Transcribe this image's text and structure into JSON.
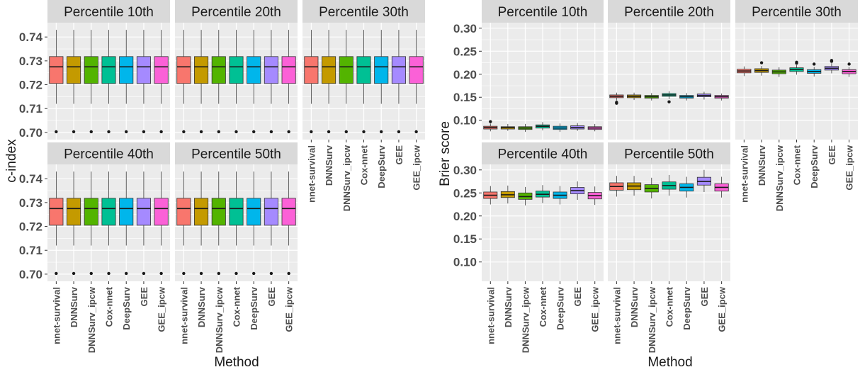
{
  "colors": {
    "nnet-survival": "#F8766D",
    "DNNSurv": "#C49A00",
    "DNNSurv_ipcw": "#53B400",
    "Cox-nnet": "#00C094",
    "DeepSurv": "#00B6EB",
    "GEE": "#A58AFF",
    "GEE_ipcw": "#FB61D7",
    "panel_bg": "#EBEBEB",
    "strip_bg": "#D9D9D9",
    "grid": "#FFFFFF"
  },
  "chart_data": [
    {
      "type": "box",
      "facet_layout": "3 columns, 2 rows",
      "ylabel": "c-index",
      "xlabel": "Method",
      "ylim": [
        0.697,
        0.746
      ],
      "yticks": [
        "0.70",
        "0.71",
        "0.72",
        "0.73",
        "0.74"
      ],
      "yticks_values": [
        0.7,
        0.71,
        0.72,
        0.73,
        0.74
      ],
      "categories": [
        "nnet-survival",
        "DNNSurv",
        "DNNSurv_ipcw",
        "Cox-nnet",
        "DeepSurv",
        "GEE",
        "GEE_ipcw"
      ],
      "panels": [
        {
          "title": "Percentile 10th",
          "boxes": [
            {
              "q1": 0.7205,
              "median": 0.7275,
              "q3": 0.7318,
              "whislo": 0.712,
              "whishi": 0.743,
              "outliers": [
                0.7003
              ]
            },
            {
              "q1": 0.7205,
              "median": 0.7275,
              "q3": 0.7318,
              "whislo": 0.712,
              "whishi": 0.743,
              "outliers": [
                0.7003
              ]
            },
            {
              "q1": 0.7205,
              "median": 0.7275,
              "q3": 0.7318,
              "whislo": 0.712,
              "whishi": 0.743,
              "outliers": [
                0.7003
              ]
            },
            {
              "q1": 0.7205,
              "median": 0.7275,
              "q3": 0.7318,
              "whislo": 0.712,
              "whishi": 0.743,
              "outliers": [
                0.7003
              ]
            },
            {
              "q1": 0.7205,
              "median": 0.7275,
              "q3": 0.7318,
              "whislo": 0.712,
              "whishi": 0.743,
              "outliers": [
                0.7003
              ]
            },
            {
              "q1": 0.7205,
              "median": 0.7275,
              "q3": 0.7318,
              "whislo": 0.712,
              "whishi": 0.743,
              "outliers": [
                0.7003
              ]
            },
            {
              "q1": 0.7205,
              "median": 0.7275,
              "q3": 0.7318,
              "whislo": 0.712,
              "whishi": 0.743,
              "outliers": [
                0.7003
              ]
            }
          ]
        },
        {
          "title": "Percentile 20th",
          "boxes": [
            {
              "q1": 0.7205,
              "median": 0.7275,
              "q3": 0.7318,
              "whislo": 0.712,
              "whishi": 0.743,
              "outliers": [
                0.7003
              ]
            },
            {
              "q1": 0.7205,
              "median": 0.7275,
              "q3": 0.7318,
              "whislo": 0.712,
              "whishi": 0.743,
              "outliers": [
                0.7003
              ]
            },
            {
              "q1": 0.7205,
              "median": 0.7275,
              "q3": 0.7318,
              "whislo": 0.712,
              "whishi": 0.743,
              "outliers": [
                0.7003
              ]
            },
            {
              "q1": 0.7205,
              "median": 0.7275,
              "q3": 0.7318,
              "whislo": 0.712,
              "whishi": 0.743,
              "outliers": [
                0.7003
              ]
            },
            {
              "q1": 0.7205,
              "median": 0.7275,
              "q3": 0.7318,
              "whislo": 0.712,
              "whishi": 0.743,
              "outliers": [
                0.7003
              ]
            },
            {
              "q1": 0.7205,
              "median": 0.7275,
              "q3": 0.7318,
              "whislo": 0.712,
              "whishi": 0.743,
              "outliers": [
                0.7003
              ]
            },
            {
              "q1": 0.7205,
              "median": 0.7275,
              "q3": 0.7318,
              "whislo": 0.712,
              "whishi": 0.743,
              "outliers": [
                0.7003
              ]
            }
          ]
        },
        {
          "title": "Percentile 30th",
          "boxes": [
            {
              "q1": 0.7205,
              "median": 0.7275,
              "q3": 0.7318,
              "whislo": 0.712,
              "whishi": 0.743,
              "outliers": [
                0.7003
              ]
            },
            {
              "q1": 0.7205,
              "median": 0.7275,
              "q3": 0.7318,
              "whislo": 0.712,
              "whishi": 0.743,
              "outliers": [
                0.7003
              ]
            },
            {
              "q1": 0.7205,
              "median": 0.7275,
              "q3": 0.7318,
              "whislo": 0.712,
              "whishi": 0.743,
              "outliers": [
                0.7003
              ]
            },
            {
              "q1": 0.7205,
              "median": 0.7275,
              "q3": 0.7318,
              "whislo": 0.712,
              "whishi": 0.743,
              "outliers": [
                0.7003
              ]
            },
            {
              "q1": 0.7205,
              "median": 0.7275,
              "q3": 0.7318,
              "whislo": 0.712,
              "whishi": 0.743,
              "outliers": [
                0.7003
              ]
            },
            {
              "q1": 0.7205,
              "median": 0.7275,
              "q3": 0.7318,
              "whislo": 0.712,
              "whishi": 0.743,
              "outliers": [
                0.7003
              ]
            },
            {
              "q1": 0.7205,
              "median": 0.7275,
              "q3": 0.7318,
              "whislo": 0.712,
              "whishi": 0.743,
              "outliers": [
                0.7003
              ]
            }
          ]
        },
        {
          "title": "Percentile 40th",
          "boxes": [
            {
              "q1": 0.7205,
              "median": 0.7275,
              "q3": 0.7318,
              "whislo": 0.712,
              "whishi": 0.743,
              "outliers": [
                0.7003
              ]
            },
            {
              "q1": 0.7205,
              "median": 0.7275,
              "q3": 0.7318,
              "whislo": 0.712,
              "whishi": 0.743,
              "outliers": [
                0.7003
              ]
            },
            {
              "q1": 0.7205,
              "median": 0.7275,
              "q3": 0.7318,
              "whislo": 0.712,
              "whishi": 0.743,
              "outliers": [
                0.7003
              ]
            },
            {
              "q1": 0.7205,
              "median": 0.7275,
              "q3": 0.7318,
              "whislo": 0.712,
              "whishi": 0.743,
              "outliers": [
                0.7003
              ]
            },
            {
              "q1": 0.7205,
              "median": 0.7275,
              "q3": 0.7318,
              "whislo": 0.712,
              "whishi": 0.743,
              "outliers": [
                0.7003
              ]
            },
            {
              "q1": 0.7205,
              "median": 0.7275,
              "q3": 0.7318,
              "whislo": 0.712,
              "whishi": 0.743,
              "outliers": [
                0.7003
              ]
            },
            {
              "q1": 0.7205,
              "median": 0.7275,
              "q3": 0.7318,
              "whislo": 0.712,
              "whishi": 0.743,
              "outliers": [
                0.7003
              ]
            }
          ]
        },
        {
          "title": "Percentile 50th",
          "boxes": [
            {
              "q1": 0.7205,
              "median": 0.7275,
              "q3": 0.7318,
              "whislo": 0.712,
              "whishi": 0.743,
              "outliers": [
                0.7003
              ]
            },
            {
              "q1": 0.7205,
              "median": 0.7275,
              "q3": 0.7318,
              "whislo": 0.712,
              "whishi": 0.743,
              "outliers": [
                0.7003
              ]
            },
            {
              "q1": 0.7205,
              "median": 0.7275,
              "q3": 0.7318,
              "whislo": 0.712,
              "whishi": 0.743,
              "outliers": [
                0.7003
              ]
            },
            {
              "q1": 0.7205,
              "median": 0.7275,
              "q3": 0.7318,
              "whislo": 0.712,
              "whishi": 0.743,
              "outliers": [
                0.7003
              ]
            },
            {
              "q1": 0.7205,
              "median": 0.7275,
              "q3": 0.7318,
              "whislo": 0.712,
              "whishi": 0.743,
              "outliers": [
                0.7003
              ]
            },
            {
              "q1": 0.7205,
              "median": 0.7275,
              "q3": 0.7318,
              "whislo": 0.712,
              "whishi": 0.743,
              "outliers": [
                0.7003
              ]
            },
            {
              "q1": 0.7205,
              "median": 0.7275,
              "q3": 0.7318,
              "whislo": 0.712,
              "whishi": 0.743,
              "outliers": [
                0.7003
              ]
            }
          ]
        }
      ]
    },
    {
      "type": "box",
      "facet_layout": "3 columns, 2 rows",
      "ylabel": "Brier score",
      "xlabel": "Method",
      "ylim": [
        0.058,
        0.312
      ],
      "yticks": [
        "0.10",
        "0.15",
        "0.20",
        "0.25",
        "0.30"
      ],
      "yticks_values": [
        0.1,
        0.15,
        0.2,
        0.25,
        0.3
      ],
      "categories": [
        "nnet-survival",
        "DNNSurv",
        "DNNSurv_ipcw",
        "Cox-nnet",
        "DeepSurv",
        "GEE",
        "GEE_ipcw"
      ],
      "panels": [
        {
          "title": "Percentile 10th",
          "boxes": [
            {
              "q1": 0.081,
              "median": 0.084,
              "q3": 0.087,
              "whislo": 0.076,
              "whishi": 0.093,
              "outliers": [
                0.097
              ]
            },
            {
              "q1": 0.081,
              "median": 0.084,
              "q3": 0.086,
              "whislo": 0.077,
              "whishi": 0.092,
              "outliers": []
            },
            {
              "q1": 0.08,
              "median": 0.083,
              "q3": 0.086,
              "whislo": 0.075,
              "whishi": 0.092,
              "outliers": []
            },
            {
              "q1": 0.083,
              "median": 0.087,
              "q3": 0.09,
              "whislo": 0.078,
              "whishi": 0.096,
              "outliers": []
            },
            {
              "q1": 0.08,
              "median": 0.083,
              "q3": 0.087,
              "whislo": 0.075,
              "whishi": 0.093,
              "outliers": []
            },
            {
              "q1": 0.081,
              "median": 0.084,
              "q3": 0.088,
              "whislo": 0.077,
              "whishi": 0.094,
              "outliers": []
            },
            {
              "q1": 0.08,
              "median": 0.083,
              "q3": 0.086,
              "whislo": 0.076,
              "whishi": 0.092,
              "outliers": []
            }
          ]
        },
        {
          "title": "Percentile 20th",
          "boxes": [
            {
              "q1": 0.149,
              "median": 0.152,
              "q3": 0.155,
              "whislo": 0.143,
              "whishi": 0.16,
              "outliers": [
                0.139,
                0.137
              ]
            },
            {
              "q1": 0.149,
              "median": 0.152,
              "q3": 0.155,
              "whislo": 0.144,
              "whishi": 0.16,
              "outliers": []
            },
            {
              "q1": 0.148,
              "median": 0.151,
              "q3": 0.154,
              "whislo": 0.143,
              "whishi": 0.159,
              "outliers": []
            },
            {
              "q1": 0.152,
              "median": 0.155,
              "q3": 0.158,
              "whislo": 0.146,
              "whishi": 0.163,
              "outliers": [
                0.14
              ]
            },
            {
              "q1": 0.148,
              "median": 0.151,
              "q3": 0.154,
              "whislo": 0.143,
              "whishi": 0.159,
              "outliers": []
            },
            {
              "q1": 0.151,
              "median": 0.154,
              "q3": 0.157,
              "whislo": 0.145,
              "whishi": 0.162,
              "outliers": []
            },
            {
              "q1": 0.148,
              "median": 0.151,
              "q3": 0.154,
              "whislo": 0.143,
              "whishi": 0.158,
              "outliers": []
            }
          ]
        },
        {
          "title": "Percentile 30th",
          "boxes": [
            {
              "q1": 0.203,
              "median": 0.207,
              "q3": 0.211,
              "whislo": 0.196,
              "whishi": 0.217,
              "outliers": []
            },
            {
              "q1": 0.204,
              "median": 0.208,
              "q3": 0.212,
              "whislo": 0.197,
              "whishi": 0.218,
              "outliers": [
                0.225
              ]
            },
            {
              "q1": 0.201,
              "median": 0.205,
              "q3": 0.209,
              "whislo": 0.194,
              "whishi": 0.215,
              "outliers": []
            },
            {
              "q1": 0.206,
              "median": 0.21,
              "q3": 0.214,
              "whislo": 0.199,
              "whishi": 0.22,
              "outliers": [
                0.226,
                0.224
              ]
            },
            {
              "q1": 0.202,
              "median": 0.206,
              "q3": 0.21,
              "whislo": 0.195,
              "whishi": 0.216,
              "outliers": [
                0.222
              ]
            },
            {
              "q1": 0.209,
              "median": 0.213,
              "q3": 0.217,
              "whislo": 0.202,
              "whishi": 0.224,
              "outliers": [
                0.23,
                0.228
              ]
            },
            {
              "q1": 0.201,
              "median": 0.206,
              "q3": 0.21,
              "whislo": 0.194,
              "whishi": 0.216,
              "outliers": [
                0.222
              ]
            }
          ]
        },
        {
          "title": "Percentile 40th",
          "boxes": [
            {
              "q1": 0.238,
              "median": 0.245,
              "q3": 0.252,
              "whislo": 0.225,
              "whishi": 0.265,
              "outliers": []
            },
            {
              "q1": 0.24,
              "median": 0.246,
              "q3": 0.253,
              "whislo": 0.227,
              "whishi": 0.266,
              "outliers": []
            },
            {
              "q1": 0.236,
              "median": 0.242,
              "q3": 0.25,
              "whislo": 0.223,
              "whishi": 0.263,
              "outliers": []
            },
            {
              "q1": 0.241,
              "median": 0.247,
              "q3": 0.254,
              "whislo": 0.228,
              "whishi": 0.267,
              "outliers": []
            },
            {
              "q1": 0.238,
              "median": 0.245,
              "q3": 0.252,
              "whislo": 0.225,
              "whishi": 0.265,
              "outliers": []
            },
            {
              "q1": 0.248,
              "median": 0.255,
              "q3": 0.262,
              "whislo": 0.235,
              "whishi": 0.275,
              "outliers": []
            },
            {
              "q1": 0.237,
              "median": 0.244,
              "q3": 0.251,
              "whislo": 0.224,
              "whishi": 0.264,
              "outliers": []
            }
          ]
        },
        {
          "title": "Percentile 50th",
          "boxes": [
            {
              "q1": 0.256,
              "median": 0.264,
              "q3": 0.272,
              "whislo": 0.242,
              "whishi": 0.287,
              "outliers": []
            },
            {
              "q1": 0.257,
              "median": 0.265,
              "q3": 0.272,
              "whislo": 0.244,
              "whishi": 0.287,
              "outliers": []
            },
            {
              "q1": 0.252,
              "median": 0.26,
              "q3": 0.268,
              "whislo": 0.238,
              "whishi": 0.283,
              "outliers": []
            },
            {
              "q1": 0.258,
              "median": 0.266,
              "q3": 0.274,
              "whislo": 0.244,
              "whishi": 0.289,
              "outliers": []
            },
            {
              "q1": 0.254,
              "median": 0.262,
              "q3": 0.27,
              "whislo": 0.24,
              "whishi": 0.285,
              "outliers": []
            },
            {
              "q1": 0.267,
              "median": 0.275,
              "q3": 0.284,
              "whislo": 0.252,
              "whishi": 0.3,
              "outliers": []
            },
            {
              "q1": 0.254,
              "median": 0.262,
              "q3": 0.27,
              "whislo": 0.24,
              "whishi": 0.285,
              "outliers": []
            }
          ]
        }
      ]
    }
  ]
}
